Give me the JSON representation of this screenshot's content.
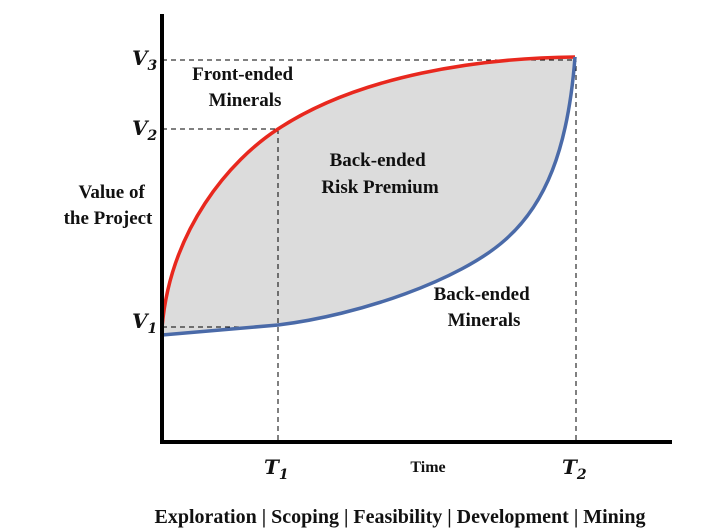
{
  "diagram": {
    "y_axis_label": [
      "Value of",
      "the Project"
    ],
    "x_axis_label": "Time",
    "y_ticks": [
      {
        "main": "V",
        "sub": "3"
      },
      {
        "main": "V",
        "sub": "2"
      },
      {
        "main": "V",
        "sub": "1"
      }
    ],
    "x_ticks": [
      {
        "main": "T",
        "sub": "1"
      },
      {
        "main": "T",
        "sub": "2"
      }
    ],
    "region_labels": {
      "front": [
        "Front-ended",
        "Minerals"
      ],
      "premium": [
        "Back-ended",
        "Risk Premium"
      ],
      "back": [
        "Back-ended",
        "Minerals"
      ]
    },
    "stages": "Exploration | Scoping | Feasibility | Development | Mining",
    "colors": {
      "front_curve": "#e8281e",
      "back_curve": "#4a6aa8",
      "fill": "#dcdcdc",
      "axis": "#000000"
    }
  }
}
